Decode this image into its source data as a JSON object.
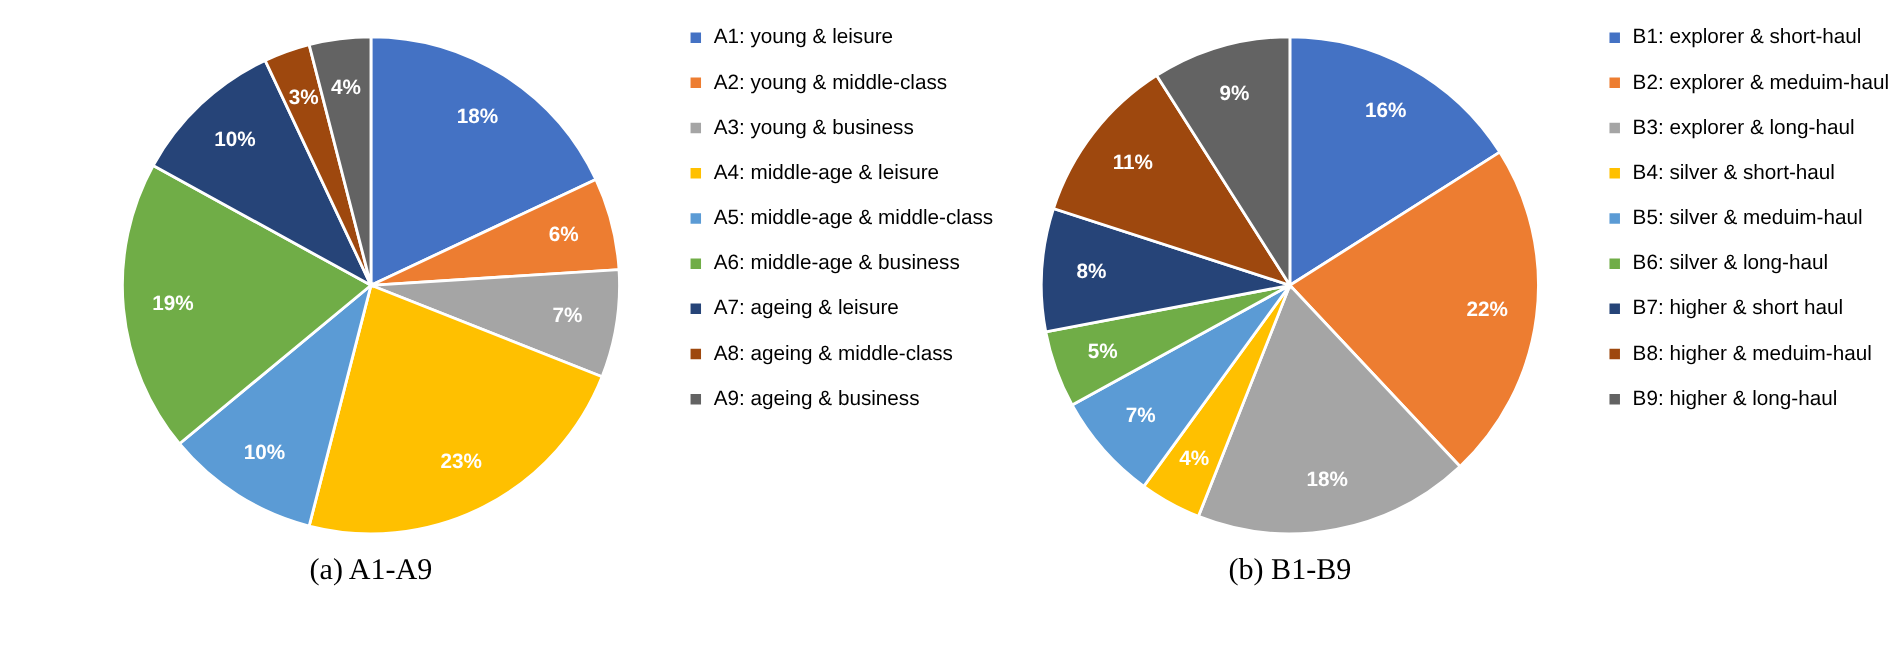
{
  "chart_data": [
    {
      "type": "pie",
      "title": "(a) A1-A9",
      "legend": "right",
      "categories": [
        "A1: young & leisure",
        "A2: young & middle-class",
        "A3: young & business",
        "A4: middle-age & leisure",
        "A5: middle-age & middle-class",
        "A6: middle-age & business",
        "A7: ageing & leisure",
        "A8: ageing & middle-class",
        "A9: ageing & business"
      ],
      "values": [
        18,
        6,
        7,
        23,
        10,
        19,
        10,
        3,
        4
      ],
      "value_labels": [
        "18%",
        "6%",
        "7%",
        "23%",
        "10%",
        "19%",
        "10%",
        "3%",
        "4%"
      ],
      "colors": [
        "#4472c4",
        "#ed7d31",
        "#a5a5a5",
        "#ffc000",
        "#5b9bd5",
        "#70ad47",
        "#264478",
        "#9e480e",
        "#636363"
      ]
    },
    {
      "type": "pie",
      "title": "(b) B1-B9",
      "legend": "right",
      "categories": [
        "B1: explorer & short-haul",
        "B2: explorer & meduim-haul",
        "B3: explorer & long-haul",
        "B4: silver & short-haul",
        "B5: silver & meduim-haul",
        "B6: silver & long-haul",
        "B7: higher & short haul",
        "B8: higher & meduim-haul",
        "B9: higher & long-haul"
      ],
      "values": [
        16,
        22,
        18,
        4,
        7,
        5,
        8,
        11,
        9
      ],
      "value_labels": [
        "16%",
        "22%",
        "18%",
        "4%",
        "7%",
        "5%",
        "8%",
        "11%",
        "9%"
      ],
      "colors": [
        "#4472c4",
        "#ed7d31",
        "#a5a5a5",
        "#ffc000",
        "#5b9bd5",
        "#70ad47",
        "#264478",
        "#9e480e",
        "#636363"
      ]
    }
  ]
}
